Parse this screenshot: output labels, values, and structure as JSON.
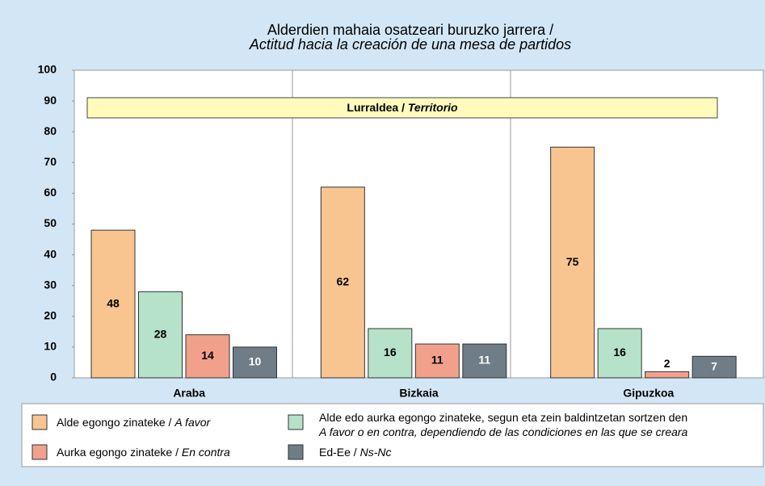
{
  "chart_data": {
    "type": "bar",
    "title": "Alderdien mahaia osatzeari buruzko jarrera /\nActitud hacia la creación de una mesa de partidos",
    "banner": "Lurraldea / Territorio",
    "categories": [
      "Araba",
      "Bizkaia",
      "Gipuzkoa"
    ],
    "series": [
      {
        "name": "Alde egongo zinateke / A favor",
        "color": "#f8c590",
        "values": [
          48,
          62,
          75
        ]
      },
      {
        "name": "Alde edo aurka egongo zinateke, segun eta zein baldintzetan sortzen den\nA favor o en contra, dependiendo de las condiciones en las que se creara",
        "color": "#b5e2c9",
        "values": [
          28,
          16,
          16
        ]
      },
      {
        "name": "Aurka egongo zinateke / En contra",
        "color": "#f1a18b",
        "values": [
          14,
          11,
          2
        ]
      },
      {
        "name": "Ed-Ee / Ns-Nc",
        "color": "#6e7d88",
        "values": [
          10,
          11,
          7
        ]
      }
    ],
    "ylim": [
      0,
      100
    ],
    "yticks": [
      0,
      10,
      20,
      30,
      40,
      50,
      60,
      70,
      80,
      90,
      100
    ],
    "grid": false
  }
}
